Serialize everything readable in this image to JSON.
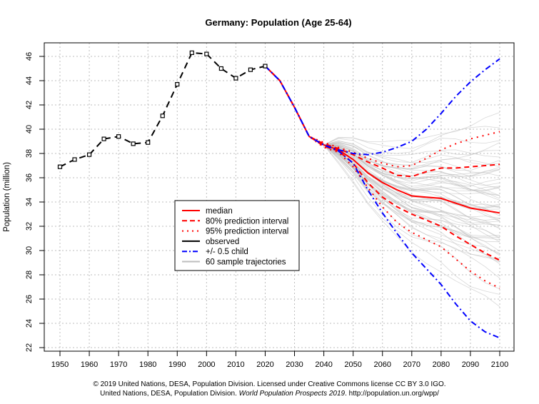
{
  "chart_data": {
    "type": "line",
    "title": "Germany: Population (Age 25-64)",
    "xlabel": "",
    "ylabel": "Population (million)",
    "xlim": [
      1945,
      2105
    ],
    "ylim": [
      21.5,
      47.5
    ],
    "x_ticks": [
      1950,
      1960,
      1970,
      1980,
      1990,
      2000,
      2010,
      2020,
      2030,
      2040,
      2050,
      2060,
      2070,
      2080,
      2090,
      2100
    ],
    "y_ticks": [
      22,
      24,
      26,
      28,
      30,
      32,
      34,
      36,
      38,
      40,
      42,
      44,
      46
    ],
    "grid": true,
    "legend_position": "center-left",
    "legend": [
      "median",
      "80% prediction interval",
      "95% prediction interval",
      "observed",
      "+/- 0.5 child",
      "60 sample trajectories"
    ],
    "observed": {
      "x": [
        1950,
        1955,
        1960,
        1965,
        1970,
        1975,
        1980,
        1985,
        1990,
        1995,
        2000,
        2005,
        2010,
        2015,
        2020
      ],
      "y": [
        36.9,
        37.5,
        37.9,
        39.2,
        39.4,
        38.8,
        38.9,
        41.1,
        43.7,
        46.3,
        46.2,
        45.0,
        44.2,
        44.9,
        45.2
      ]
    },
    "projection_x": [
      2020,
      2025,
      2030,
      2035,
      2040,
      2045,
      2050,
      2055,
      2060,
      2065,
      2070,
      2075,
      2080,
      2085,
      2090,
      2095,
      2100
    ],
    "series": [
      {
        "name": "median",
        "values": [
          45.2,
          44.0,
          41.8,
          39.4,
          38.7,
          38.3,
          37.5,
          36.4,
          35.6,
          35.0,
          34.5,
          34.4,
          34.3,
          33.9,
          33.5,
          33.3,
          33.1
        ]
      },
      {
        "name": "80% upper",
        "values": [
          45.2,
          44.0,
          41.8,
          39.4,
          38.8,
          38.4,
          37.9,
          37.3,
          36.8,
          36.2,
          36.1,
          36.5,
          36.8,
          36.8,
          36.9,
          37.0,
          37.1
        ]
      },
      {
        "name": "80% lower",
        "values": [
          45.2,
          44.0,
          41.8,
          39.4,
          38.6,
          38.2,
          37.2,
          35.6,
          34.4,
          33.6,
          33.0,
          32.5,
          32.0,
          31.2,
          30.5,
          29.8,
          29.2
        ]
      },
      {
        "name": "95% upper",
        "values": [
          45.2,
          44.0,
          41.8,
          39.4,
          38.9,
          38.5,
          38.1,
          37.6,
          37.2,
          36.9,
          37.0,
          37.6,
          38.3,
          38.8,
          39.2,
          39.5,
          39.8
        ]
      },
      {
        "name": "95% lower",
        "values": [
          45.2,
          44.0,
          41.8,
          39.4,
          38.5,
          38.1,
          36.9,
          35.2,
          33.6,
          32.3,
          31.5,
          30.9,
          30.3,
          29.3,
          28.3,
          27.5,
          26.9
        ]
      },
      {
        "name": "+0.5 child",
        "values": [
          45.2,
          44.0,
          41.8,
          39.4,
          38.7,
          38.3,
          38.0,
          37.9,
          38.1,
          38.5,
          39.0,
          40.0,
          41.3,
          42.7,
          43.9,
          44.9,
          45.8
        ]
      },
      {
        "name": "-0.5 child",
        "values": [
          45.2,
          44.0,
          41.8,
          39.4,
          38.7,
          38.2,
          37.2,
          35.0,
          33.1,
          31.4,
          29.8,
          28.5,
          27.2,
          25.6,
          24.2,
          23.3,
          22.8
        ]
      }
    ],
    "sample_trajectories_count": 60,
    "sample_trajectory_2100_values": [
      40.9,
      40.3,
      39.5,
      38.6,
      37.9,
      37.3,
      36.9,
      36.4,
      36.0,
      35.6,
      35.2,
      34.8,
      34.4,
      34.0,
      33.6,
      33.2,
      32.8,
      32.4,
      32.0,
      31.6,
      31.2,
      30.8,
      30.4,
      30.0,
      29.6,
      29.2,
      28.6,
      28.0,
      27.2,
      26.0,
      25.1,
      34.6,
      33.8,
      35.4,
      31.8,
      30.2,
      36.6,
      32.2,
      29.8,
      37.6,
      33.4,
      34.2,
      31.4,
      35.8,
      30.6,
      28.8,
      38.2,
      32.6,
      36.2,
      33.0,
      35.0,
      31.0,
      29.4,
      34.9,
      33.7,
      37.0,
      30.9,
      32.9,
      35.3,
      31.6
    ]
  },
  "footer": {
    "line1": "© 2019 United Nations, DESA, Population Division. Licensed under Creative Commons license CC BY 3.0 IGO.",
    "line2_a": "United Nations, DESA, Population Division. ",
    "line2_italic": "World Population Prospects 2019",
    "line2_b": ". http://population.un.org/wpp/"
  },
  "colors": {
    "median": "#ff0000",
    "interval": "#ff0000",
    "observed": "#000000",
    "child": "#0000ff",
    "trajectory": "#bebebe"
  }
}
